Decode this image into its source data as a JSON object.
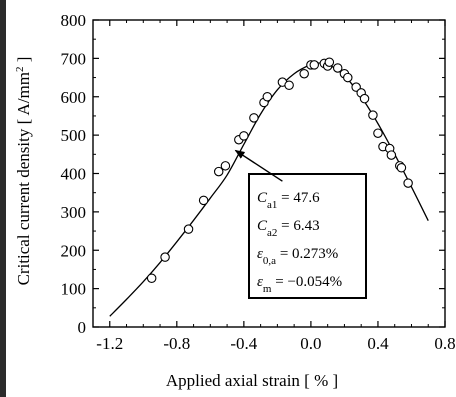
{
  "chart_data": {
    "type": "scatter",
    "title": "",
    "xlabel": "Applied axial strain [ % ]",
    "ylabel": "Critical current density [ A/mm",
    "ylabel_sup": "2",
    "ylabel_end": " ]",
    "xlim": [
      -1.3,
      0.8
    ],
    "ylim": [
      0,
      800
    ],
    "xticks": [
      -1.2,
      -0.8,
      -0.4,
      0.0,
      0.4,
      0.8
    ],
    "xtick_labels": [
      "-1.2",
      "-0.8",
      "-0.4",
      "0.0",
      "0.4",
      "0.8"
    ],
    "yticks": [
      0,
      100,
      200,
      300,
      400,
      500,
      600,
      700,
      800
    ],
    "ytick_labels": [
      "0",
      "100",
      "200",
      "300",
      "400",
      "500",
      "600",
      "700",
      "800"
    ],
    "grid": false,
    "series": [
      {
        "kind": "markers",
        "marker": "open-circle",
        "x": [
          -0.95,
          -0.87,
          -0.73,
          -0.64,
          -0.55,
          -0.51,
          -0.43,
          -0.4,
          -0.34,
          -0.28,
          -0.26,
          -0.17,
          -0.13,
          -0.04,
          0.0,
          0.02,
          0.08,
          0.1,
          0.11,
          0.16,
          0.2,
          0.22,
          0.27,
          0.3,
          0.32,
          0.37,
          0.4,
          0.43,
          0.47,
          0.48,
          0.53,
          0.54,
          0.58
        ],
        "y": [
          127,
          182,
          255,
          330,
          405,
          420,
          488,
          498,
          545,
          585,
          600,
          638,
          630,
          660,
          683,
          683,
          687,
          680,
          690,
          675,
          660,
          650,
          625,
          610,
          595,
          552,
          505,
          470,
          465,
          448,
          420,
          415,
          375
        ]
      },
      {
        "kind": "line",
        "x": [
          -1.2,
          -1.1,
          -1.0,
          -0.9,
          -0.8,
          -0.7,
          -0.6,
          -0.5,
          -0.4,
          -0.3,
          -0.2,
          -0.1,
          0.0,
          0.05,
          0.1,
          0.2,
          0.3,
          0.4,
          0.5,
          0.6,
          0.7
        ],
        "y": [
          28,
          72,
          118,
          168,
          222,
          278,
          336,
          396,
          476,
          555,
          618,
          660,
          684,
          688,
          685,
          655,
          600,
          530,
          450,
          365,
          277
        ]
      }
    ],
    "annotation": {
      "arrow_from": [
        -0.17,
        380
      ],
      "arrow_to": [
        -0.45,
        460
      ],
      "lines": [
        {
          "sym": "C",
          "sub": "a1",
          "text": " = 47.6"
        },
        {
          "sym": "C",
          "sub": "a2",
          "text": " = 6.43"
        },
        {
          "sym": "ε",
          "sub": "0,a",
          "text": " = 0.273%"
        },
        {
          "sym": "ε",
          "sub": "m",
          "text": " = −0.054%"
        }
      ]
    }
  }
}
